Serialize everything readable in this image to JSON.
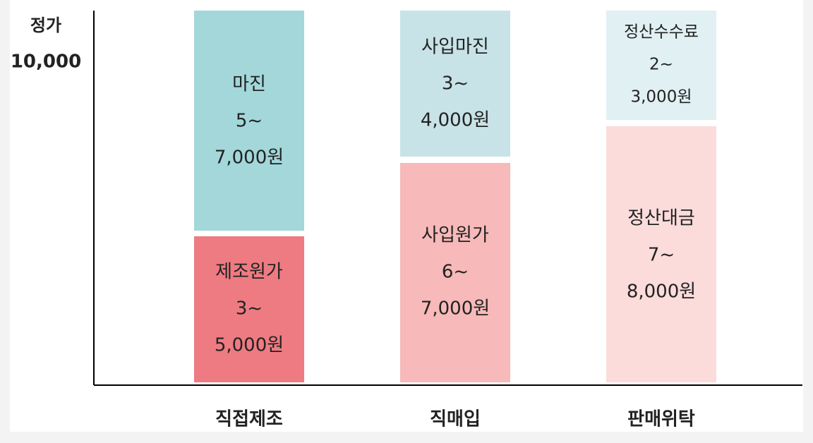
{
  "y_axis": {
    "title": "정가",
    "top_label": "10,000"
  },
  "columns": [
    {
      "label": "직접제조",
      "segments": [
        {
          "lines": [
            "마진",
            "5~",
            "7,000원"
          ]
        },
        {
          "lines": [
            "제조원가",
            "3~",
            "5,000원"
          ]
        }
      ]
    },
    {
      "label": "직매입",
      "segments": [
        {
          "lines": [
            "사입마진",
            "3~",
            "4,000원"
          ]
        },
        {
          "lines": [
            "사입원가",
            "6~",
            "7,000원"
          ]
        }
      ]
    },
    {
      "label": "판매위탁",
      "segments": [
        {
          "lines": [
            "정산수수료",
            "2~",
            "3,000원"
          ]
        },
        {
          "lines": [
            "정산대금",
            "7~",
            "8,000원"
          ]
        }
      ]
    }
  ]
}
